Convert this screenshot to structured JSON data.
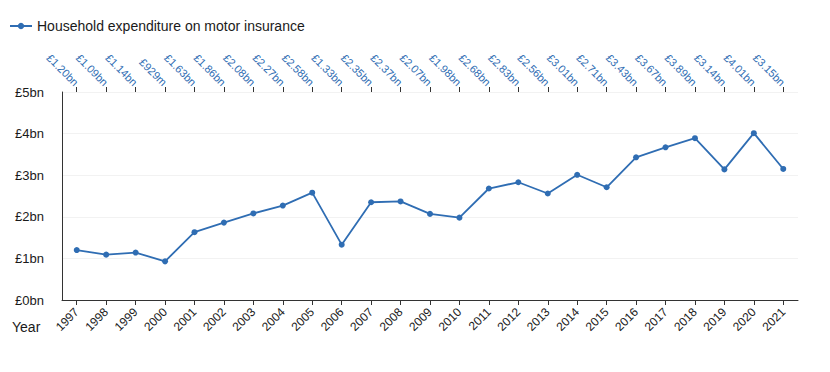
{
  "chart_data": {
    "type": "line",
    "x_label": "Year",
    "categories": [
      "1997",
      "1998",
      "1999",
      "2000",
      "2001",
      "2002",
      "2003",
      "2004",
      "2005",
      "2006",
      "2007",
      "2008",
      "2009",
      "2010",
      "2011",
      "2012",
      "2013",
      "2014",
      "2015",
      "2016",
      "2017",
      "2018",
      "2019",
      "2020",
      "2021"
    ],
    "series": [
      {
        "name": "Household expenditure on motor insurance",
        "color": "#2f6db3",
        "marker": "circle",
        "values": [
          1.2,
          1.09,
          1.14,
          0.929,
          1.63,
          1.86,
          2.08,
          2.27,
          2.58,
          1.33,
          2.35,
          2.37,
          2.07,
          1.98,
          2.68,
          2.83,
          2.56,
          3.01,
          2.71,
          3.43,
          3.67,
          3.89,
          3.14,
          4.01,
          3.15
        ],
        "value_labels": [
          "£1.20bn",
          "£1.09bn",
          "£1.14bn",
          "£929m",
          "£1.63bn",
          "£1.86bn",
          "£2.08bn",
          "£2.27bn",
          "£2.58bn",
          "£1.33bn",
          "£2.35bn",
          "£2.37bn",
          "£2.07bn",
          "£1.98bn",
          "£2.68bn",
          "£2.83bn",
          "£2.56bn",
          "£3.01bn",
          "£2.71bn",
          "£3.43bn",
          "£3.67bn",
          "£3.89bn",
          "£3.14bn",
          "£4.01bn",
          "£3.15bn"
        ]
      }
    ],
    "ylim": [
      0,
      5
    ],
    "yticks": [
      {
        "value": 0,
        "label": "£0bn"
      },
      {
        "value": 1,
        "label": "£1bn"
      },
      {
        "value": 2,
        "label": "£2bn"
      },
      {
        "value": 3,
        "label": "£3bn"
      },
      {
        "value": 4,
        "label": "£4bn"
      },
      {
        "value": 5,
        "label": "£5bn"
      }
    ],
    "grid": true,
    "legend": "top-left",
    "data_labels": true
  }
}
